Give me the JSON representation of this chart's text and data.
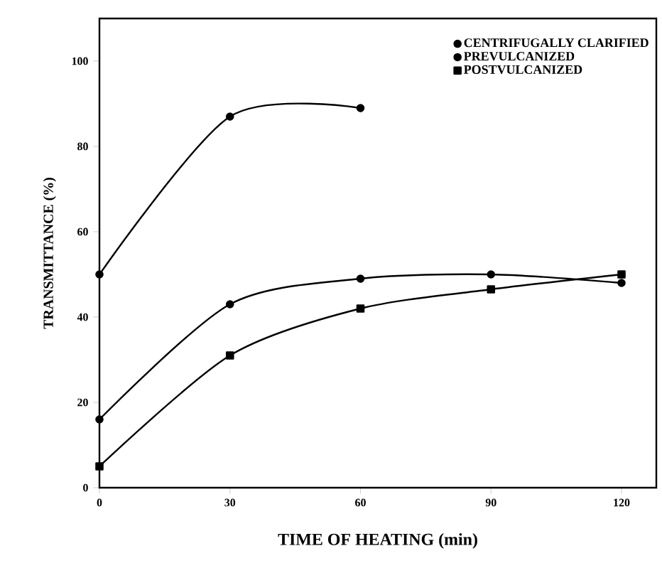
{
  "chart_data": {
    "type": "line",
    "xlabel": "TIME OF HEATING (min)",
    "ylabel": "TRANSMITTANCE (%)",
    "x": [
      0,
      30,
      60,
      90,
      120
    ],
    "series": [
      {
        "name": "CENTRIFUGALLY CLARIFIED",
        "color": "#000000",
        "marker": "circle",
        "values": [
          50,
          87,
          89,
          null,
          null
        ]
      },
      {
        "name": "PREVULCANIZED",
        "color": "#000000",
        "marker": "circle",
        "values": [
          16,
          43,
          49,
          50,
          48
        ]
      },
      {
        "name": "POSTVULCANIZED",
        "color": "#000000",
        "marker": "square",
        "values": [
          5,
          31,
          42,
          46.5,
          50
        ]
      }
    ],
    "xlim": [
      0,
      128
    ],
    "ylim": [
      0,
      110
    ],
    "xticks": [
      0,
      30,
      60,
      90,
      120
    ],
    "yticks": [
      0,
      20,
      40,
      60,
      80,
      100
    ],
    "grid": false,
    "legend": "top right",
    "line_style": "solid"
  }
}
